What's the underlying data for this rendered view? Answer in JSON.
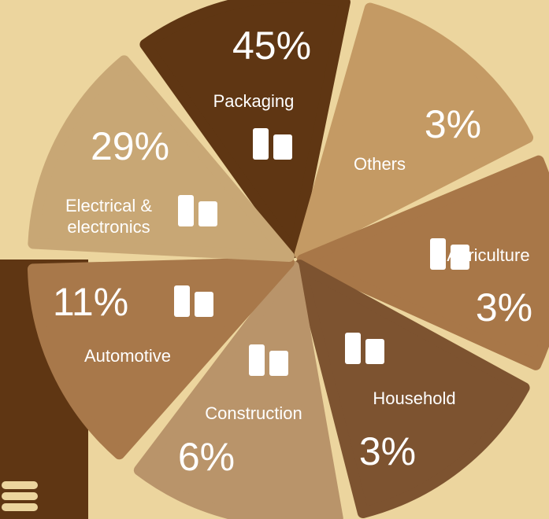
{
  "segments": [
    {
      "label": [
        "Packaging"
      ],
      "percent": "45%"
    },
    {
      "label": [
        "Others"
      ],
      "percent": "3%"
    },
    {
      "label": [
        "Agriculture"
      ],
      "percent": "3%"
    },
    {
      "label": [
        "Household"
      ],
      "percent": "3%"
    },
    {
      "label": [
        "Construction"
      ],
      "percent": "6%"
    },
    {
      "label": [
        "Automotive"
      ],
      "percent": "11%"
    },
    {
      "label": [
        "Electrical &",
        "electronics"
      ],
      "percent": "29%"
    }
  ]
}
